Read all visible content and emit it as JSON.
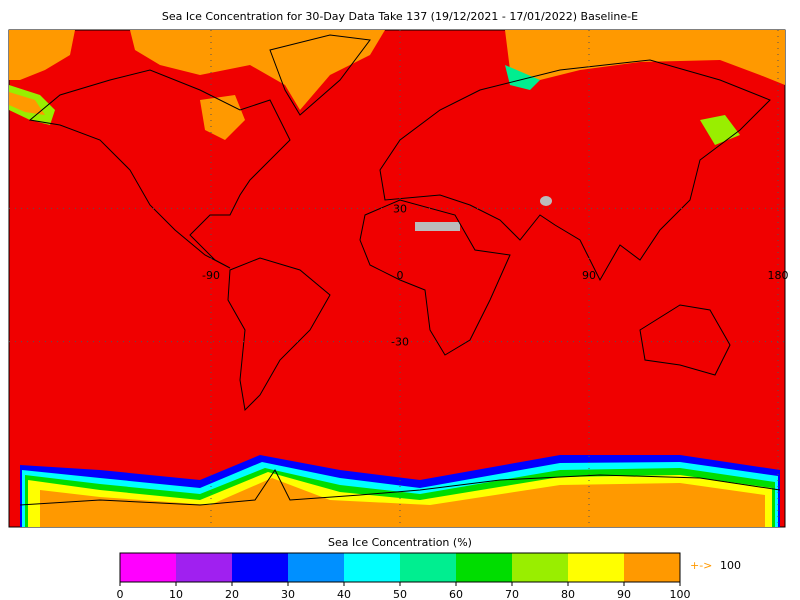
{
  "title": "Sea Ice Concentration for 30-Day Data Take 137 (19/12/2021 - 17/01/2022) Baseline-E",
  "grid_labels": {
    "longitudes": [
      -90,
      0,
      90,
      180
    ],
    "latitudes": [
      30,
      -30
    ]
  },
  "colorbar": {
    "label": "Sea Ice Concentration (%)",
    "ticks": [
      0,
      10,
      20,
      30,
      40,
      50,
      60,
      70,
      80,
      90,
      100
    ],
    "colors": [
      "#ff00ff",
      "#a020f0",
      "#0000ff",
      "#0090ff",
      "#00ffff",
      "#00ee90",
      "#00dd00",
      "#99ee00",
      "#ffff00",
      "#ff9900"
    ],
    "overflow_label": "+->",
    "overflow_value": 100
  }
}
